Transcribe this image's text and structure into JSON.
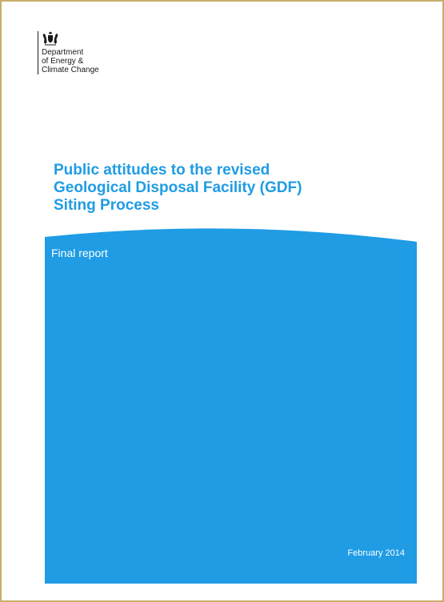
{
  "department": {
    "crest_icon": "royal-coat-of-arms-icon",
    "lines": [
      "Department",
      "of Energy &",
      "Climate Change"
    ]
  },
  "title": {
    "lines": [
      "Public attitudes to the revised",
      "Geological Disposal Facility (GDF)",
      "Siting Process"
    ]
  },
  "subtitle": "Final report",
  "date": "February 2014",
  "colors": {
    "brand_blue": "#1f9ce4",
    "frame": "#c9ae6c",
    "text_dark": "#1a1a1a"
  }
}
